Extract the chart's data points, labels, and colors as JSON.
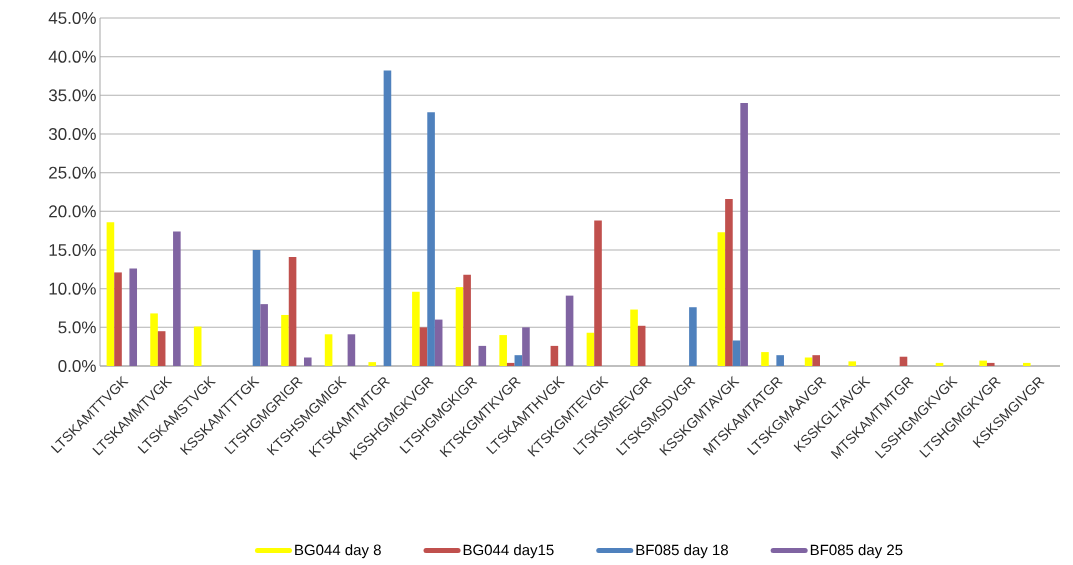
{
  "chart_data": {
    "type": "bar",
    "categories": [
      "LTSKAMTTVGK",
      "LTSKAMMTVGK",
      "LTSKAMSTVGK",
      "KSSKAMTTTGK",
      "LTSHGMGRIGR",
      "KTSHSMGMIGK",
      "KTSKAMTMTGR",
      "KSSHGMGKVGR",
      "LTSHGMGKIGR",
      "KTSKGMTKVGR",
      "LTSKAMTHVGK",
      "KTSKGMTEVGK",
      "LTSKSMSEVGR",
      "LTSKSMSDVGR",
      "KSSKGMTAVGK",
      "MTSKAMTATGR",
      "LTSKGMAAVGR",
      "KSSKGLTAVGK",
      "MTSKAMTMTGR",
      "LSSHGMGKVGK",
      "LTSHGMGKVGR",
      "KSKSMGIVGR"
    ],
    "series": [
      {
        "name": "BG044 day 8",
        "color": "#ffff00",
        "values": [
          18.6,
          6.8,
          5.1,
          0,
          6.6,
          4.1,
          0.5,
          9.6,
          10.2,
          4.0,
          0,
          4.3,
          7.3,
          0,
          17.3,
          1.8,
          1.1,
          0.6,
          0,
          0.4,
          0.7,
          0.4
        ]
      },
      {
        "name": "BG044 day15",
        "color": "#c0504d",
        "values": [
          12.1,
          4.5,
          0,
          0,
          14.1,
          0,
          0,
          5.0,
          11.8,
          0.4,
          2.6,
          18.8,
          5.2,
          0,
          21.6,
          0,
          1.4,
          0,
          1.2,
          0,
          0.4,
          0
        ]
      },
      {
        "name": "BF085 day 18",
        "color": "#4f81bd",
        "values": [
          0,
          0,
          0,
          15.0,
          0,
          0,
          38.2,
          32.8,
          0,
          1.4,
          0,
          0,
          0,
          7.6,
          3.3,
          1.4,
          0,
          0,
          0,
          0,
          0,
          0
        ]
      },
      {
        "name": "BF085 day 25",
        "color": "#8064a2",
        "values": [
          12.6,
          17.4,
          0,
          8.0,
          1.1,
          4.1,
          0,
          6.0,
          2.6,
          5.0,
          9.1,
          0,
          0,
          0,
          34.0,
          0,
          0,
          0,
          0,
          0,
          0,
          0
        ]
      }
    ],
    "ylim": [
      0,
      45
    ],
    "yticks": [
      {
        "value": 0,
        "label": "0.0%"
      },
      {
        "value": 5,
        "label": "5.0%"
      },
      {
        "value": 10,
        "label": "10.0%"
      },
      {
        "value": 15,
        "label": "15.0%"
      },
      {
        "value": 20,
        "label": "20.0%"
      },
      {
        "value": 25,
        "label": "25.0%"
      },
      {
        "value": 30,
        "label": "30.0%"
      },
      {
        "value": 35,
        "label": "35.0%"
      },
      {
        "value": 40,
        "label": "40.0%"
      },
      {
        "value": 45,
        "label": "45.0%"
      }
    ],
    "grid": "y",
    "legend": "bottom"
  }
}
